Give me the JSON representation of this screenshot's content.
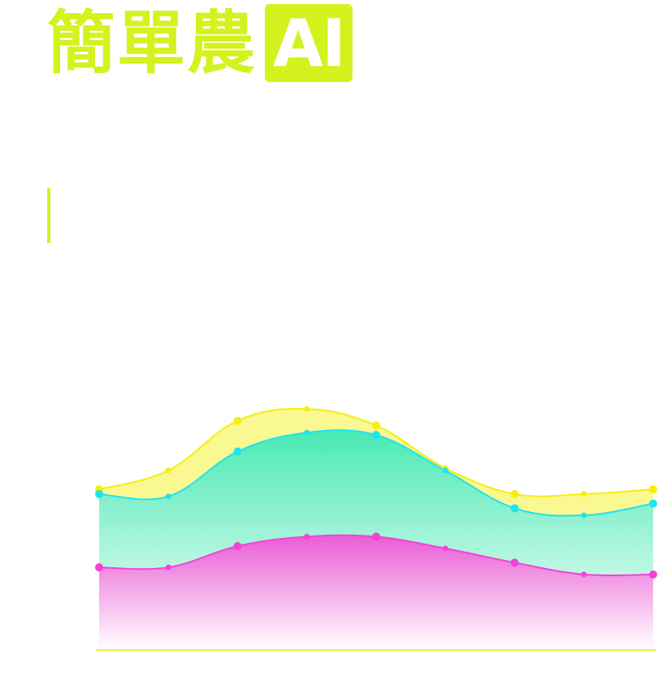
{
  "brand": {
    "logo_text": "簡單農",
    "logo_badge": "AI",
    "accent_color": "#d4f21e"
  },
  "chart_data": {
    "type": "area",
    "title": "",
    "xlabel": "",
    "ylabel": "",
    "grid": false,
    "legend": "none",
    "x": [
      1,
      2,
      3,
      4,
      5,
      6,
      7,
      8,
      9
    ],
    "series": [
      {
        "color": "#f5ef0a",
        "values": [
          0.68,
          0.76,
          0.97,
          1.02,
          0.95,
          0.77,
          0.66,
          0.66,
          0.68
        ],
        "fill_from": 1
      },
      {
        "color": "#1ee3f0",
        "values": [
          0.66,
          0.65,
          0.84,
          0.92,
          0.91,
          0.76,
          0.6,
          0.57,
          0.62
        ],
        "fill_to": "baseline",
        "fill_gradient": [
          "#3fe8b0",
          "#ffffff"
        ]
      },
      {
        "color": "#f542d4",
        "values": [
          0.35,
          0.35,
          0.44,
          0.48,
          0.48,
          0.43,
          0.37,
          0.32,
          0.32
        ],
        "fill_to": "baseline",
        "fill_gradient": [
          "#f542d4",
          "#ffffff"
        ]
      }
    ],
    "ylim": [
      0,
      1.1
    ]
  }
}
